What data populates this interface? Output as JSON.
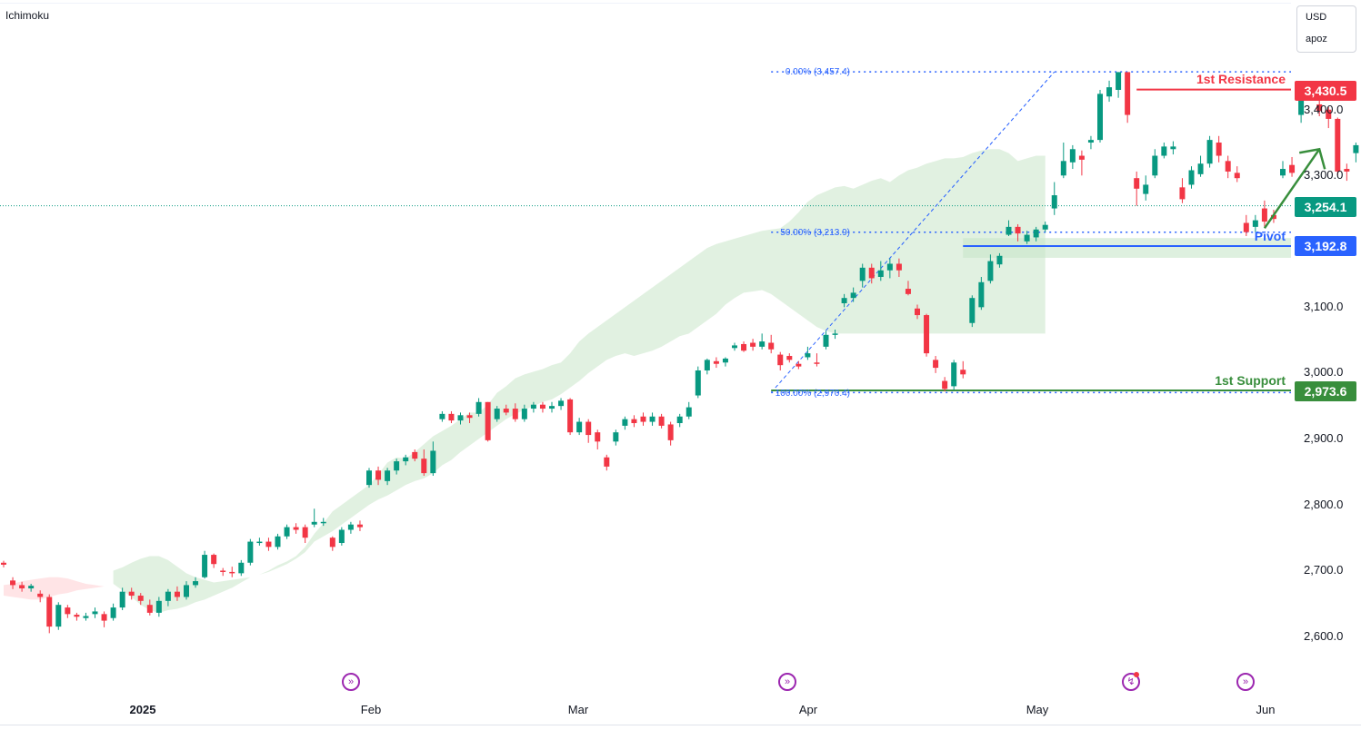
{
  "header": {
    "indicator": "Ichimoku"
  },
  "currency_box": {
    "currency": "USD",
    "user": "apoz"
  },
  "colors": {
    "bull": "#089981",
    "bear": "#f23645",
    "cloud_green": "#c8e6c9",
    "cloud_red": "#ffcdd2",
    "resistance": "#f23645",
    "support": "#388e3c",
    "pivot": "#2962ff",
    "pivot_band": "#c8e6c9",
    "fib": "#2962ff",
    "current": "#089981",
    "arrow": "#388e3c",
    "event": "#9c27b0"
  },
  "chart_data": {
    "type": "candlestick",
    "title": "Ichimoku",
    "ylim": [
      2550,
      3510
    ],
    "y_ticks": [
      2600,
      2700,
      2800,
      2900,
      3000,
      3100,
      3300,
      3400
    ],
    "y_tick_labels": [
      "2,600.0",
      "2,700.0",
      "2,800.0",
      "2,900.0",
      "3,000.0",
      "3,100.0",
      "3,300.0",
      "3,400.0"
    ],
    "x_labels": [
      "2025",
      "Feb",
      "Mar",
      "Apr",
      "May",
      "Jun"
    ],
    "x_label_indices": [
      10,
      47,
      67,
      89,
      112,
      135
    ],
    "index_range": [
      -3,
      139
    ],
    "candles": [
      [
        2712,
        2709,
        2715,
        2705
      ],
      [
        2685,
        2678,
        2690,
        2672
      ],
      [
        2678,
        2673,
        2683,
        2668
      ],
      [
        2673,
        2677,
        2680,
        2668
      ],
      [
        2665,
        2660,
        2670,
        2652
      ],
      [
        2660,
        2615,
        2664,
        2605
      ],
      [
        2615,
        2648,
        2652,
        2610
      ],
      [
        2644,
        2634,
        2648,
        2628
      ],
      [
        2633,
        2630,
        2636,
        2624
      ],
      [
        2628,
        2631,
        2636,
        2624
      ],
      [
        2634,
        2638,
        2644,
        2628
      ],
      [
        2634,
        2624,
        2638,
        2614
      ],
      [
        2628,
        2644,
        2650,
        2624
      ],
      [
        2644,
        2668,
        2674,
        2640
      ],
      [
        2668,
        2662,
        2674,
        2656
      ],
      [
        2662,
        2654,
        2666,
        2648
      ],
      [
        2648,
        2636,
        2656,
        2632
      ],
      [
        2636,
        2654,
        2660,
        2630
      ],
      [
        2654,
        2668,
        2672,
        2646
      ],
      [
        2668,
        2660,
        2676,
        2654
      ],
      [
        2660,
        2678,
        2684,
        2656
      ],
      [
        2678,
        2684,
        2690,
        2674
      ],
      [
        2690,
        2724,
        2730,
        2688
      ],
      [
        2724,
        2710,
        2726,
        2704
      ],
      [
        2700,
        2698,
        2704,
        2692
      ],
      [
        2698,
        2696,
        2706,
        2690
      ],
      [
        2696,
        2712,
        2716,
        2692
      ],
      [
        2712,
        2744,
        2748,
        2708
      ],
      [
        2744,
        2744,
        2750,
        2738
      ],
      [
        2744,
        2736,
        2750,
        2730
      ],
      [
        2736,
        2752,
        2756,
        2732
      ],
      [
        2752,
        2766,
        2770,
        2748
      ],
      [
        2766,
        2762,
        2772,
        2756
      ],
      [
        2766,
        2750,
        2770,
        2742
      ],
      [
        2770,
        2774,
        2794,
        2766
      ],
      [
        2774,
        2774,
        2780,
        2768
      ],
      [
        2750,
        2736,
        2752,
        2730
      ],
      [
        2742,
        2762,
        2766,
        2738
      ],
      [
        2762,
        2770,
        2774,
        2756
      ],
      [
        2770,
        2766,
        2776,
        2760
      ],
      [
        2830,
        2852,
        2856,
        2826
      ],
      [
        2852,
        2838,
        2858,
        2830
      ],
      [
        2836,
        2852,
        2856,
        2830
      ],
      [
        2852,
        2866,
        2870,
        2846
      ],
      [
        2866,
        2872,
        2876,
        2860
      ],
      [
        2880,
        2870,
        2884,
        2866
      ],
      [
        2870,
        2848,
        2884,
        2844
      ],
      [
        2848,
        2882,
        2896,
        2844
      ],
      [
        2930,
        2938,
        2942,
        2926
      ],
      [
        2938,
        2928,
        2942,
        2924
      ],
      [
        2928,
        2936,
        2940,
        2922
      ],
      [
        2936,
        2932,
        2940,
        2924
      ],
      [
        2938,
        2956,
        2962,
        2934
      ],
      [
        2956,
        2898,
        2956,
        2896
      ],
      [
        2930,
        2946,
        2950,
        2926
      ],
      [
        2946,
        2940,
        2952,
        2936
      ],
      [
        2946,
        2930,
        2954,
        2926
      ],
      [
        2930,
        2946,
        2952,
        2926
      ],
      [
        2946,
        2952,
        2956,
        2940
      ],
      [
        2952,
        2946,
        2956,
        2940
      ],
      [
        2946,
        2950,
        2956,
        2940
      ],
      [
        2950,
        2958,
        2962,
        2944
      ],
      [
        2960,
        2910,
        2962,
        2906
      ],
      [
        2910,
        2926,
        2932,
        2906
      ],
      [
        2926,
        2906,
        2930,
        2894
      ],
      [
        2910,
        2896,
        2914,
        2884
      ],
      [
        2872,
        2858,
        2876,
        2852
      ],
      [
        2896,
        2910,
        2914,
        2890
      ],
      [
        2920,
        2930,
        2934,
        2914
      ],
      [
        2930,
        2924,
        2936,
        2918
      ],
      [
        2934,
        2926,
        2940,
        2920
      ],
      [
        2926,
        2934,
        2940,
        2920
      ],
      [
        2934,
        2920,
        2938,
        2916
      ],
      [
        2922,
        2898,
        2926,
        2890
      ],
      [
        2924,
        2934,
        2938,
        2918
      ],
      [
        2934,
        2948,
        2956,
        2930
      ],
      [
        2966,
        3004,
        3010,
        2962
      ],
      [
        3004,
        3020,
        3022,
        2998
      ],
      [
        3018,
        3014,
        3024,
        3008
      ],
      [
        3016,
        3022,
        3024,
        3010
      ],
      [
        3038,
        3042,
        3046,
        3034
      ],
      [
        3044,
        3034,
        3048,
        3032
      ],
      [
        3046,
        3040,
        3052,
        3034
      ],
      [
        3040,
        3048,
        3060,
        3036
      ],
      [
        3046,
        3036,
        3058,
        3030
      ],
      [
        3028,
        3012,
        3032,
        3004
      ],
      [
        3026,
        3020,
        3030,
        3016
      ],
      [
        3014,
        3010,
        3018,
        3006
      ],
      [
        3024,
        3030,
        3040,
        3020
      ],
      [
        3016,
        3014,
        3030,
        3010
      ],
      [
        3040,
        3058,
        3064,
        3036
      ],
      [
        3058,
        3060,
        3066,
        3052
      ],
      [
        3106,
        3114,
        3120,
        3100
      ],
      [
        3114,
        3122,
        3130,
        3108
      ],
      [
        3140,
        3160,
        3166,
        3130
      ],
      [
        3160,
        3144,
        3166,
        3136
      ],
      [
        3146,
        3156,
        3170,
        3140
      ],
      [
        3156,
        3166,
        3174,
        3144
      ],
      [
        3166,
        3156,
        3174,
        3146
      ],
      [
        3128,
        3120,
        3140,
        3118
      ],
      [
        3098,
        3088,
        3104,
        3082
      ],
      [
        3088,
        3030,
        3090,
        3025
      ],
      [
        3020,
        3008,
        3026,
        3000
      ],
      [
        2988,
        2976,
        2994,
        2972
      ],
      [
        2980,
        3016,
        3020,
        2974
      ],
      [
        3005,
        2998,
        3018,
        2992
      ],
      [
        3076,
        3114,
        3118,
        3070
      ],
      [
        3100,
        3138,
        3146,
        3096
      ],
      [
        3140,
        3170,
        3180,
        3136
      ],
      [
        3165,
        3178,
        3182,
        3160
      ],
      [
        3210,
        3222,
        3232,
        3208
      ],
      [
        3222,
        3212,
        3226,
        3200
      ],
      [
        3200,
        3210,
        3216,
        3196
      ],
      [
        3206,
        3218,
        3222,
        3200
      ],
      [
        3218,
        3225,
        3230,
        3214
      ],
      [
        3250,
        3270,
        3290,
        3240
      ],
      [
        3300,
        3322,
        3350,
        3296
      ],
      [
        3320,
        3340,
        3346,
        3310
      ],
      [
        3330,
        3324,
        3338,
        3300
      ],
      [
        3350,
        3354,
        3360,
        3340
      ],
      [
        3354,
        3424,
        3430,
        3350
      ],
      [
        3420,
        3434,
        3444,
        3412
      ],
      [
        3430,
        3457,
        3457,
        3418
      ],
      [
        3457,
        3392,
        3457,
        3380
      ],
      [
        3296,
        3280,
        3306,
        3254
      ],
      [
        3272,
        3286,
        3300,
        3262
      ],
      [
        3300,
        3330,
        3340,
        3296
      ],
      [
        3330,
        3344,
        3350,
        3326
      ],
      [
        3340,
        3344,
        3352,
        3332
      ],
      [
        3282,
        3264,
        3296,
        3258
      ],
      [
        3286,
        3308,
        3314,
        3280
      ],
      [
        3302,
        3318,
        3330,
        3298
      ],
      [
        3318,
        3354,
        3360,
        3312
      ],
      [
        3350,
        3330,
        3360,
        3320
      ],
      [
        3322,
        3306,
        3330,
        3296
      ],
      [
        3304,
        3296,
        3314,
        3290
      ],
      [
        3228,
        3214,
        3240,
        3208
      ],
      [
        3222,
        3232,
        3240,
        3214
      ],
      [
        3250,
        3230,
        3262,
        3222
      ],
      [
        3240,
        3234,
        3248,
        3228
      ],
      [
        3300,
        3310,
        3322,
        3296
      ],
      [
        3316,
        3304,
        3328,
        3298
      ],
      [
        3392,
        3420,
        3426,
        3380
      ],
      [
        3420,
        3430,
        3434,
        3414
      ],
      [
        3408,
        3398,
        3420,
        3390
      ],
      [
        3400,
        3386,
        3404,
        3372
      ],
      [
        3386,
        3306,
        3388,
        3300
      ],
      [
        3310,
        3306,
        3318,
        3292
      ],
      [
        3334,
        3346,
        3350,
        3320
      ],
      [
        3346,
        3334,
        3350,
        3326
      ],
      [
        3232,
        3216,
        3240,
        3210
      ],
      [
        3218,
        3232,
        3240,
        3214
      ],
      [
        3244,
        3252,
        3256,
        3238
      ]
    ],
    "cloud_green": {
      "index_start": 9,
      "upper": [
        2700,
        2705,
        2712,
        2718,
        2722,
        2722,
        2716,
        2706,
        2696,
        2690,
        2686,
        2682,
        2684,
        2686,
        2688,
        2690,
        2694,
        2700,
        2708,
        2714,
        2722,
        2736,
        2756,
        2772,
        2790,
        2800,
        2810,
        2820,
        2830,
        2846,
        2864,
        2872,
        2870,
        2880,
        2892,
        2904,
        2912,
        2920,
        2930,
        2940,
        2940,
        2952,
        2970,
        2980,
        2992,
        2998,
        3002,
        3006,
        3012,
        3016,
        3030,
        3048,
        3060,
        3070,
        3080,
        3090,
        3100,
        3110,
        3120,
        3130,
        3140,
        3150,
        3160,
        3170,
        3180,
        3190,
        3196,
        3200,
        3204,
        3208,
        3212,
        3216,
        3218,
        3220,
        3230,
        3244,
        3260,
        3270,
        3276,
        3282,
        3284,
        3280,
        3286,
        3292,
        3296,
        3290,
        3300,
        3308,
        3312,
        3318,
        3322,
        3326,
        3326,
        3328,
        3334,
        3338,
        3340,
        3340,
        3334,
        3322,
        3326,
        3330,
        3330
      ],
      "lower": [
        2680,
        2670,
        2660,
        2648,
        2640,
        2636,
        2640,
        2642,
        2646,
        2652,
        2656,
        2662,
        2668,
        2674,
        2682,
        2690,
        2694,
        2698,
        2704,
        2710,
        2718,
        2728,
        2744,
        2752,
        2760,
        2770,
        2780,
        2790,
        2800,
        2808,
        2814,
        2822,
        2830,
        2836,
        2840,
        2848,
        2860,
        2868,
        2880,
        2890,
        2900,
        2910,
        2920,
        2930,
        2938,
        2944,
        2950,
        2956,
        2960,
        2968,
        2978,
        2988,
        3000,
        3010,
        3020,
        3026,
        3030,
        3026,
        3030,
        3034,
        3040,
        3048,
        3056,
        3060,
        3070,
        3080,
        3090,
        3104,
        3114,
        3122,
        3124,
        3126,
        3120,
        3110,
        3100,
        3090,
        3080,
        3070,
        3064,
        3060,
        3060,
        3060,
        3060,
        3060,
        3060,
        3060,
        3060,
        3060,
        3060,
        3060,
        3060,
        3060,
        3060,
        3060,
        3060,
        3060,
        3060,
        3060,
        3060,
        3060,
        3060,
        3060,
        3060
      ]
    },
    "cloud_red": {
      "index_start": -3,
      "upper": [
        2678,
        2680,
        2684,
        2686,
        2688,
        2690,
        2690,
        2688,
        2684,
        2680,
        2678,
        2676
      ],
      "lower": [
        2662,
        2660,
        2658,
        2656,
        2656,
        2660,
        2664,
        2666,
        2670,
        2672,
        2674,
        2676
      ]
    },
    "levels": {
      "resistance": {
        "label": "1st Resistance",
        "value": 3430.5,
        "value_label": "3,430.5",
        "start_index": 121
      },
      "pivot": {
        "label": "Pivot",
        "value": 3192.8,
        "value_label": "3,192.8",
        "start_index": 102,
        "band_low": 3175,
        "band_high": 3205
      },
      "support": {
        "label": "1st Support",
        "value": 2973.6,
        "value_label": "2,973.6",
        "start_index": 81
      },
      "current": {
        "value": 3254.1,
        "value_label": "3,254.1"
      }
    },
    "fib": {
      "label_0": "0.00% (3,457.4)",
      "value_0": 3457.4,
      "label_50": "50.00% (3,213.9)",
      "value_50": 3213.9,
      "label_100": "100.00% (2,970.4)",
      "value_100": 2970.4,
      "start_index": 81,
      "end_index": 139,
      "trend_from_index": 81,
      "trend_to_index": 112
    },
    "arrow": {
      "from_index": 135,
      "from_value": 3220,
      "to_index": 141,
      "to_value": 3340
    },
    "event_markers": [
      32,
      78,
      125,
      137
    ]
  }
}
